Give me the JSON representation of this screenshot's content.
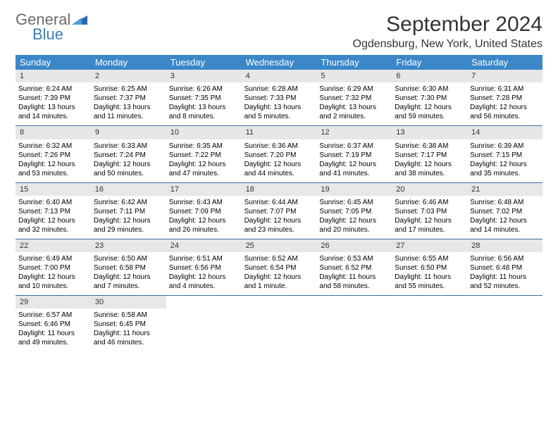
{
  "logo": {
    "word1": "General",
    "word2": "Blue"
  },
  "title": "September 2024",
  "location": "Ogdensburg, New York, United States",
  "colors": {
    "header_bg": "#3b87c8",
    "header_text": "#ffffff",
    "daynum_bg": "#e7e7e7",
    "week_border": "#3b6fa0",
    "logo_gray": "#6b6b6b",
    "logo_blue": "#3b7fb8"
  },
  "typography": {
    "title_fontsize": 30,
    "location_fontsize": 16,
    "dayheader_fontsize": 13,
    "cell_fontsize": 10
  },
  "day_names": [
    "Sunday",
    "Monday",
    "Tuesday",
    "Wednesday",
    "Thursday",
    "Friday",
    "Saturday"
  ],
  "weeks": [
    [
      {
        "n": "1",
        "sr": "Sunrise: 6:24 AM",
        "ss": "Sunset: 7:39 PM",
        "d1": "Daylight: 13 hours",
        "d2": "and 14 minutes."
      },
      {
        "n": "2",
        "sr": "Sunrise: 6:25 AM",
        "ss": "Sunset: 7:37 PM",
        "d1": "Daylight: 13 hours",
        "d2": "and 11 minutes."
      },
      {
        "n": "3",
        "sr": "Sunrise: 6:26 AM",
        "ss": "Sunset: 7:35 PM",
        "d1": "Daylight: 13 hours",
        "d2": "and 8 minutes."
      },
      {
        "n": "4",
        "sr": "Sunrise: 6:28 AM",
        "ss": "Sunset: 7:33 PM",
        "d1": "Daylight: 13 hours",
        "d2": "and 5 minutes."
      },
      {
        "n": "5",
        "sr": "Sunrise: 6:29 AM",
        "ss": "Sunset: 7:32 PM",
        "d1": "Daylight: 13 hours",
        "d2": "and 2 minutes."
      },
      {
        "n": "6",
        "sr": "Sunrise: 6:30 AM",
        "ss": "Sunset: 7:30 PM",
        "d1": "Daylight: 12 hours",
        "d2": "and 59 minutes."
      },
      {
        "n": "7",
        "sr": "Sunrise: 6:31 AM",
        "ss": "Sunset: 7:28 PM",
        "d1": "Daylight: 12 hours",
        "d2": "and 56 minutes."
      }
    ],
    [
      {
        "n": "8",
        "sr": "Sunrise: 6:32 AM",
        "ss": "Sunset: 7:26 PM",
        "d1": "Daylight: 12 hours",
        "d2": "and 53 minutes."
      },
      {
        "n": "9",
        "sr": "Sunrise: 6:33 AM",
        "ss": "Sunset: 7:24 PM",
        "d1": "Daylight: 12 hours",
        "d2": "and 50 minutes."
      },
      {
        "n": "10",
        "sr": "Sunrise: 6:35 AM",
        "ss": "Sunset: 7:22 PM",
        "d1": "Daylight: 12 hours",
        "d2": "and 47 minutes."
      },
      {
        "n": "11",
        "sr": "Sunrise: 6:36 AM",
        "ss": "Sunset: 7:20 PM",
        "d1": "Daylight: 12 hours",
        "d2": "and 44 minutes."
      },
      {
        "n": "12",
        "sr": "Sunrise: 6:37 AM",
        "ss": "Sunset: 7:19 PM",
        "d1": "Daylight: 12 hours",
        "d2": "and 41 minutes."
      },
      {
        "n": "13",
        "sr": "Sunrise: 6:38 AM",
        "ss": "Sunset: 7:17 PM",
        "d1": "Daylight: 12 hours",
        "d2": "and 38 minutes."
      },
      {
        "n": "14",
        "sr": "Sunrise: 6:39 AM",
        "ss": "Sunset: 7:15 PM",
        "d1": "Daylight: 12 hours",
        "d2": "and 35 minutes."
      }
    ],
    [
      {
        "n": "15",
        "sr": "Sunrise: 6:40 AM",
        "ss": "Sunset: 7:13 PM",
        "d1": "Daylight: 12 hours",
        "d2": "and 32 minutes."
      },
      {
        "n": "16",
        "sr": "Sunrise: 6:42 AM",
        "ss": "Sunset: 7:11 PM",
        "d1": "Daylight: 12 hours",
        "d2": "and 29 minutes."
      },
      {
        "n": "17",
        "sr": "Sunrise: 6:43 AM",
        "ss": "Sunset: 7:09 PM",
        "d1": "Daylight: 12 hours",
        "d2": "and 26 minutes."
      },
      {
        "n": "18",
        "sr": "Sunrise: 6:44 AM",
        "ss": "Sunset: 7:07 PM",
        "d1": "Daylight: 12 hours",
        "d2": "and 23 minutes."
      },
      {
        "n": "19",
        "sr": "Sunrise: 6:45 AM",
        "ss": "Sunset: 7:05 PM",
        "d1": "Daylight: 12 hours",
        "d2": "and 20 minutes."
      },
      {
        "n": "20",
        "sr": "Sunrise: 6:46 AM",
        "ss": "Sunset: 7:03 PM",
        "d1": "Daylight: 12 hours",
        "d2": "and 17 minutes."
      },
      {
        "n": "21",
        "sr": "Sunrise: 6:48 AM",
        "ss": "Sunset: 7:02 PM",
        "d1": "Daylight: 12 hours",
        "d2": "and 14 minutes."
      }
    ],
    [
      {
        "n": "22",
        "sr": "Sunrise: 6:49 AM",
        "ss": "Sunset: 7:00 PM",
        "d1": "Daylight: 12 hours",
        "d2": "and 10 minutes."
      },
      {
        "n": "23",
        "sr": "Sunrise: 6:50 AM",
        "ss": "Sunset: 6:58 PM",
        "d1": "Daylight: 12 hours",
        "d2": "and 7 minutes."
      },
      {
        "n": "24",
        "sr": "Sunrise: 6:51 AM",
        "ss": "Sunset: 6:56 PM",
        "d1": "Daylight: 12 hours",
        "d2": "and 4 minutes."
      },
      {
        "n": "25",
        "sr": "Sunrise: 6:52 AM",
        "ss": "Sunset: 6:54 PM",
        "d1": "Daylight: 12 hours",
        "d2": "and 1 minute."
      },
      {
        "n": "26",
        "sr": "Sunrise: 6:53 AM",
        "ss": "Sunset: 6:52 PM",
        "d1": "Daylight: 11 hours",
        "d2": "and 58 minutes."
      },
      {
        "n": "27",
        "sr": "Sunrise: 6:55 AM",
        "ss": "Sunset: 6:50 PM",
        "d1": "Daylight: 11 hours",
        "d2": "and 55 minutes."
      },
      {
        "n": "28",
        "sr": "Sunrise: 6:56 AM",
        "ss": "Sunset: 6:48 PM",
        "d1": "Daylight: 11 hours",
        "d2": "and 52 minutes."
      }
    ],
    [
      {
        "n": "29",
        "sr": "Sunrise: 6:57 AM",
        "ss": "Sunset: 6:46 PM",
        "d1": "Daylight: 11 hours",
        "d2": "and 49 minutes."
      },
      {
        "n": "30",
        "sr": "Sunrise: 6:58 AM",
        "ss": "Sunset: 6:45 PM",
        "d1": "Daylight: 11 hours",
        "d2": "and 46 minutes."
      },
      null,
      null,
      null,
      null,
      null
    ]
  ]
}
